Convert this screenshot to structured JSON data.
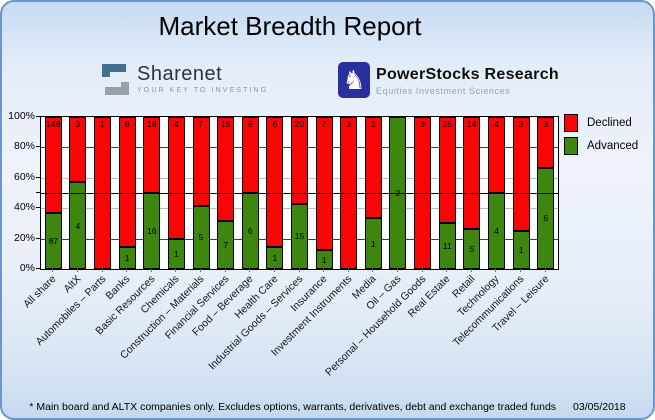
{
  "header": {
    "title": "Market Breadth Report",
    "sharenet": {
      "name": "Sharenet",
      "tagline": "YOUR KEY TO INVESTING"
    },
    "powerstocks": {
      "name": "PowerStocks  Research",
      "tagline": "Equities Investment Sciences"
    }
  },
  "chart_data": {
    "type": "bar",
    "stacked": true,
    "normalized_to_100pct": true,
    "categories": [
      "All share",
      "AltX",
      "Automobiles – Parts",
      "Banks",
      "Basic Resources",
      "Chemicals",
      "Construction – Materials",
      "Financial Services",
      "Food – Beverage",
      "Health Care",
      "Industrial Goods – Services",
      "Insurance",
      "Investment Instruments",
      "Media",
      "Oil – Gas",
      "Personal – Household Goods",
      "Real Estate",
      "Retail",
      "Technology",
      "Telecommunications",
      "Travel – Leisure"
    ],
    "series": [
      {
        "name": "Declined",
        "color": "#fa0505",
        "values": [
          148,
          3,
          1,
          6,
          16,
          4,
          7,
          15,
          6,
          6,
          20,
          7,
          3,
          2,
          0,
          3,
          25,
          14,
          4,
          3,
          3
        ]
      },
      {
        "name": "Advanced",
        "color": "#3d860f",
        "values": [
          87,
          4,
          0,
          1,
          16,
          1,
          5,
          7,
          6,
          1,
          15,
          1,
          0,
          1,
          2,
          0,
          11,
          5,
          4,
          1,
          6
        ]
      }
    ],
    "y_ticks": [
      "100%",
      "80%",
      "60%",
      "40%",
      "20%",
      "0%"
    ],
    "ylim": [
      0,
      100
    ],
    "legend_position": "right",
    "grid": {
      "navy_lines": [
        20,
        80
      ],
      "gray_lines": [
        40,
        60
      ],
      "mid_line": 50,
      "navy_color": "#3333a2",
      "gray_color": "#bbbbbb",
      "mid_color": "#000000"
    }
  },
  "footer": {
    "disclaimer": "* Main board and ALTX companies only. Excludes options, warrants, derivatives, debt and exchange traded funds",
    "date": "03/05/2018"
  }
}
